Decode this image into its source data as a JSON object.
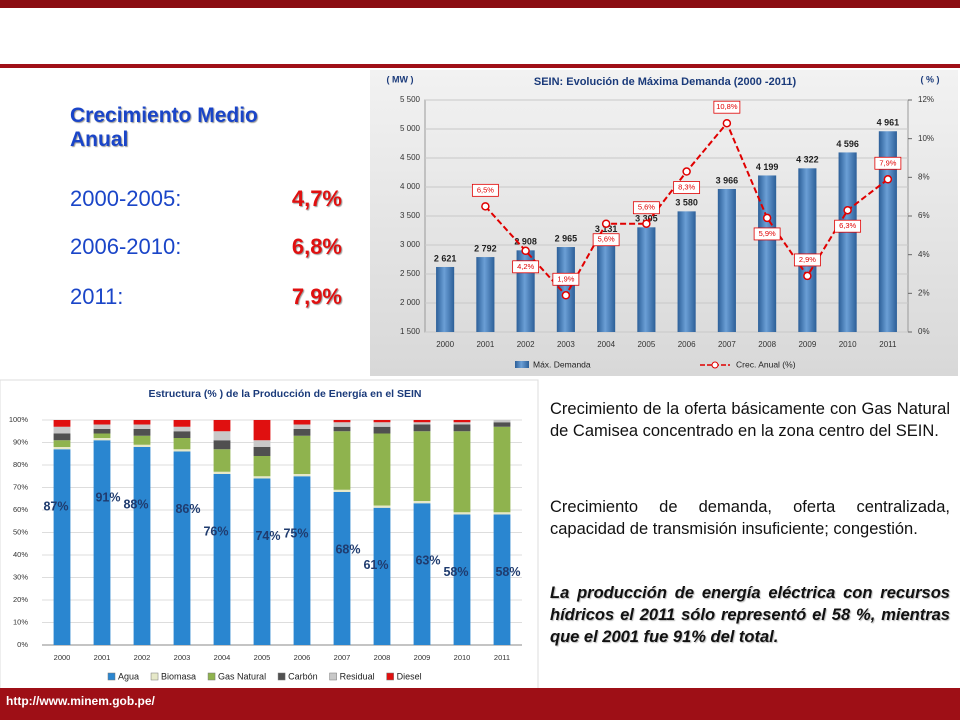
{
  "chart_data": [
    {
      "type": "bar",
      "title": "SEIN: Evolución de Máxima Demanda (2000 -2011)",
      "y_label": "( MW )",
      "y2_label": "( % )",
      "categories": [
        "2000",
        "2001",
        "2002",
        "2003",
        "2004",
        "2005",
        "2006",
        "2007",
        "2008",
        "2009",
        "2010",
        "2011"
      ],
      "series": [
        {
          "name": "Máx. Demanda",
          "color": "#3f79b8",
          "values": [
            2621,
            2792,
            2908,
            2965,
            3131,
            3305,
            3580,
            3966,
            4199,
            4322,
            4596,
            4961
          ],
          "value_labels": [
            "2 621",
            "2 792",
            "2 908",
            "2 965",
            "3 131",
            "3 305",
            "3 580",
            "3 966",
            "4 199",
            "4 322",
            "4 596",
            "4 961"
          ]
        },
        {
          "name": "Crec. Anual (%)",
          "color": "#e00000",
          "axis": "y2",
          "values": [
            null,
            6.5,
            4.2,
            1.9,
            5.6,
            5.6,
            8.3,
            10.8,
            5.9,
            2.9,
            6.3,
            7.9
          ],
          "value_labels": [
            null,
            "6,5%",
            "4,2%",
            "1,9%",
            "5,6%",
            "5,6%",
            "8,3%",
            "10,8%",
            "5,9%",
            "2,9%",
            "6,3%",
            "7,9%"
          ]
        }
      ],
      "ylim": [
        1500,
        5500
      ],
      "yticks": [
        {
          "value": 1500,
          "label": "1 500"
        },
        {
          "value": 2000,
          "label": "2 000"
        },
        {
          "value": 2500,
          "label": "2 500"
        },
        {
          "value": 3000,
          "label": "3 000"
        },
        {
          "value": 3500,
          "label": "3 500"
        },
        {
          "value": 4000,
          "label": "4 000"
        },
        {
          "value": 4500,
          "label": "4 500"
        },
        {
          "value": 5000,
          "label": "5 000"
        },
        {
          "value": 5500,
          "label": "5 500"
        }
      ],
      "y2lim": [
        0,
        12
      ],
      "y2ticks": [
        {
          "value": 0,
          "label": "0%"
        },
        {
          "value": 2,
          "label": "2%"
        },
        {
          "value": 4,
          "label": "4%"
        },
        {
          "value": 6,
          "label": "6%"
        },
        {
          "value": 8,
          "label": "8%"
        },
        {
          "value": 10,
          "label": "10%"
        },
        {
          "value": 12,
          "label": "12%"
        }
      ],
      "grid": true,
      "legend": "bottom"
    },
    {
      "type": "stacked_bar",
      "title": "Estructura (% ) de la Producción de Energía en el SEIN",
      "categories": [
        "2000",
        "2001",
        "2002",
        "2003",
        "2004",
        "2005",
        "2006",
        "2007",
        "2008",
        "2009",
        "2010",
        "2011"
      ],
      "series": [
        {
          "name": "Agua",
          "color": "#2a86d0",
          "values": [
            87,
            91,
            88,
            86,
            76,
            74,
            75,
            68,
            61,
            63,
            58,
            58
          ],
          "value_labels": [
            "87%",
            "91%",
            "88%",
            "86%",
            "76%",
            "74%",
            "75%",
            "68%",
            "61%",
            "63%",
            "58%",
            "58%"
          ]
        },
        {
          "name": "Biomasa",
          "color": "#e6e8c8",
          "values": [
            1,
            1,
            1,
            1,
            1,
            1,
            1,
            1,
            1,
            1,
            1,
            1
          ]
        },
        {
          "name": "Gas Natural",
          "color": "#8fb34e",
          "values": [
            3,
            2,
            4,
            5,
            10,
            9,
            17,
            26,
            32,
            31,
            36,
            38
          ]
        },
        {
          "name": "Carbón",
          "color": "#505050",
          "values": [
            3,
            2,
            3,
            3,
            4,
            4,
            3,
            2,
            3,
            3,
            3,
            2
          ]
        },
        {
          "name": "Residual",
          "color": "#c8c8c8",
          "values": [
            3,
            2,
            2,
            2,
            4,
            3,
            2,
            2,
            2,
            1,
            1,
            1
          ]
        },
        {
          "name": "Diesel",
          "color": "#e01010",
          "values": [
            3,
            2,
            2,
            3,
            5,
            9,
            2,
            1,
            1,
            1,
            1,
            0
          ]
        }
      ],
      "ylim": [
        0,
        100
      ],
      "yticks": [
        {
          "value": 0,
          "label": "0%"
        },
        {
          "value": 10,
          "label": "10%"
        },
        {
          "value": 20,
          "label": "20%"
        },
        {
          "value": 30,
          "label": "30%"
        },
        {
          "value": 40,
          "label": "40%"
        },
        {
          "value": 50,
          "label": "50%"
        },
        {
          "value": 60,
          "label": "60%"
        },
        {
          "value": 70,
          "label": "70%"
        },
        {
          "value": 80,
          "label": "80%"
        },
        {
          "value": 90,
          "label": "90%"
        },
        {
          "value": 100,
          "label": "100%"
        }
      ],
      "grid": true,
      "legend": "bottom"
    }
  ],
  "growth_summary": {
    "title": "Crecimiento Medio Anual",
    "items": [
      {
        "period": "2000-2005:",
        "rate": "4,7%"
      },
      {
        "period": "2006-2010:",
        "rate": "6,8%"
      },
      {
        "period": "2011:",
        "rate": "7,9%"
      }
    ]
  },
  "paragraphs": [
    "Crecimiento de la oferta básicamente con Gas Natural de Camisea concentrado en la zona centro del SEIN.",
    "Crecimiento de demanda, oferta centralizada, capacidad de transmisión insuficiente; congestión."
  ],
  "highlight": "La producción de energía eléctrica con recursos hídricos el 2011 sólo representó el 58 %, mientras que el 2001 fue 91% del total.",
  "footer": "http://www.minem.gob.pe/"
}
